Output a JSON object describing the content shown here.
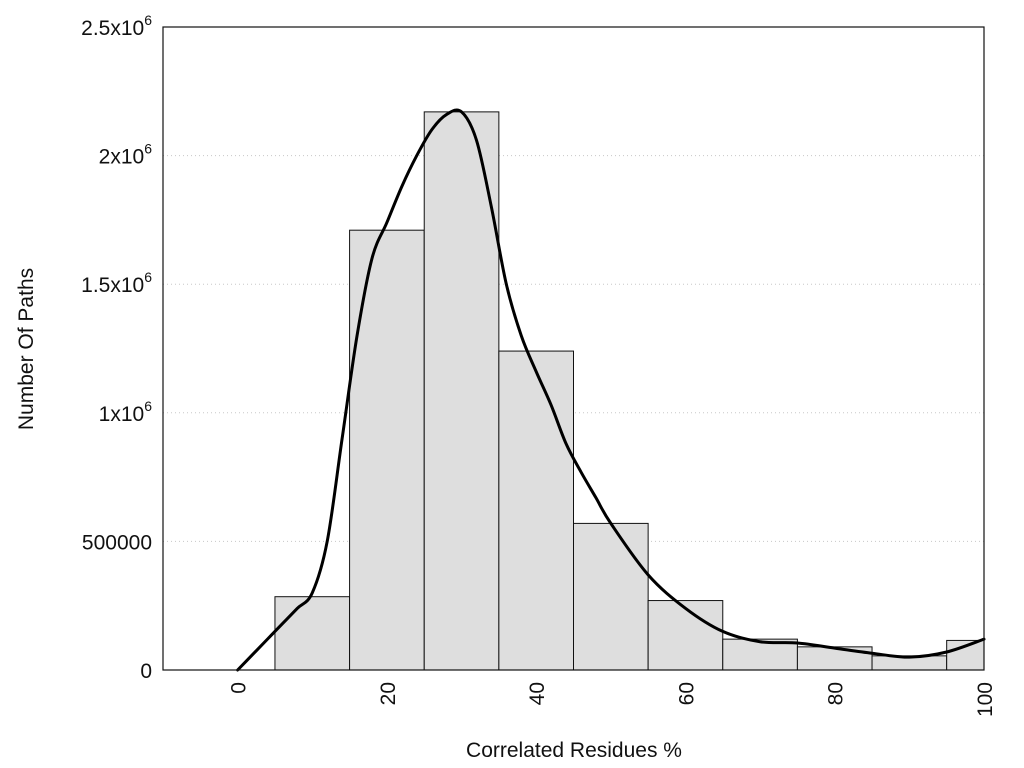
{
  "chart_data": {
    "type": "bar",
    "title": "",
    "xlabel": "Correlated Residues %",
    "ylabel": "Number Of Paths",
    "xlim": [
      -10,
      100
    ],
    "ylim": [
      0,
      2500000
    ],
    "grid": true,
    "x_ticks": [
      {
        "value": 0,
        "label": "0"
      },
      {
        "value": 20,
        "label": "20"
      },
      {
        "value": 40,
        "label": "40"
      },
      {
        "value": 60,
        "label": "60"
      },
      {
        "value": 80,
        "label": "80"
      },
      {
        "value": 100,
        "label": "100"
      }
    ],
    "y_ticks": [
      {
        "value": 0,
        "base": "0",
        "exp": ""
      },
      {
        "value": 500000,
        "base": "500000",
        "exp": ""
      },
      {
        "value": 1000000,
        "base": "1x10",
        "exp": "6"
      },
      {
        "value": 1500000,
        "base": "1.5x10",
        "exp": "6"
      },
      {
        "value": 2000000,
        "base": "2x10",
        "exp": "6"
      },
      {
        "value": 2500000,
        "base": "2.5x10",
        "exp": "6"
      }
    ],
    "bin_width": 10,
    "series": [
      {
        "type": "bar",
        "bins": [
          10,
          20,
          30,
          40,
          50,
          60,
          70,
          80,
          90,
          100
        ],
        "values": [
          285000,
          1710000,
          2170000,
          1240000,
          570000,
          270000,
          120000,
          90000,
          55000,
          115000
        ]
      },
      {
        "type": "line",
        "x": [
          0,
          2,
          4,
          6,
          8,
          10,
          12,
          14,
          16,
          18,
          20,
          22,
          24,
          26,
          28,
          30,
          32,
          34,
          36,
          38,
          40,
          42,
          44,
          46,
          48,
          50,
          55,
          60,
          65,
          70,
          75,
          80,
          85,
          90,
          95,
          100
        ],
        "y": [
          0,
          60000,
          120000,
          180000,
          240000,
          300000,
          500000,
          900000,
          1300000,
          1600000,
          1740000,
          1880000,
          2000000,
          2100000,
          2160000,
          2170000,
          2060000,
          1800000,
          1500000,
          1300000,
          1160000,
          1030000,
          880000,
          770000,
          670000,
          570000,
          370000,
          240000,
          150000,
          110000,
          105000,
          85000,
          65000,
          50000,
          70000,
          120000
        ]
      }
    ]
  }
}
